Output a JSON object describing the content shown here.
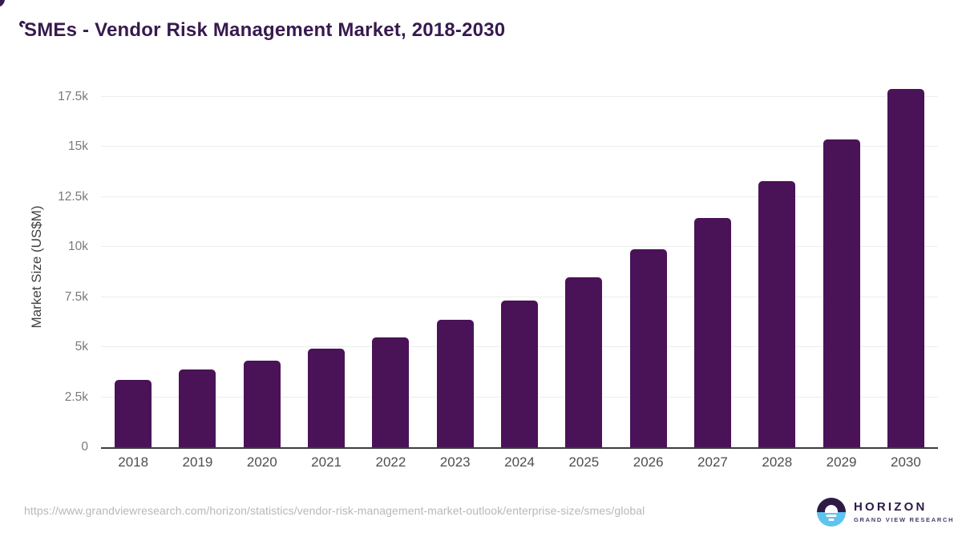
{
  "page": {
    "title": "SMEs - Vendor Risk Management Market, 2018-2030"
  },
  "chart_data": {
    "type": "bar",
    "title": "SMEs - Vendor Risk Management Market, 2018-2030",
    "categories": [
      "2018",
      "2019",
      "2020",
      "2021",
      "2022",
      "2023",
      "2024",
      "2025",
      "2026",
      "2027",
      "2028",
      "2029",
      "2030"
    ],
    "values": [
      3370,
      3880,
      4340,
      4920,
      5470,
      6350,
      7340,
      8490,
      9900,
      11440,
      13300,
      15370,
      17900
    ],
    "series_name": "Market Size",
    "xlabel": "",
    "ylabel": "Market Size (US$M)",
    "ylim": [
      0,
      18000
    ],
    "ytick_interval": 2500,
    "ytick_labels": [
      "0",
      "2.5k",
      "5k",
      "7.5k",
      "10k",
      "12.5k",
      "15k",
      "17.5k"
    ],
    "grid": "horizontal-light",
    "legend": "none",
    "bar_color": "#4a1257"
  },
  "footer": {
    "source_url": "https://www.grandviewresearch.com/horizon/statistics/vendor-risk-management-market-outlook/enterprise-size/smes/global",
    "logo": {
      "name": "HORIZON",
      "subtitle": "GRAND VIEW RESEARCH"
    }
  },
  "colors": {
    "title_text": "#371a4e",
    "bar": "#4a1257",
    "gridline": "#ededed",
    "axis_line": "#3c3c41",
    "tick_text": "#7a7a7a",
    "logo_dark_purple": "#2e1a47",
    "logo_light_blue": "#5fc3ef",
    "source_text": "#b8b8b8"
  }
}
